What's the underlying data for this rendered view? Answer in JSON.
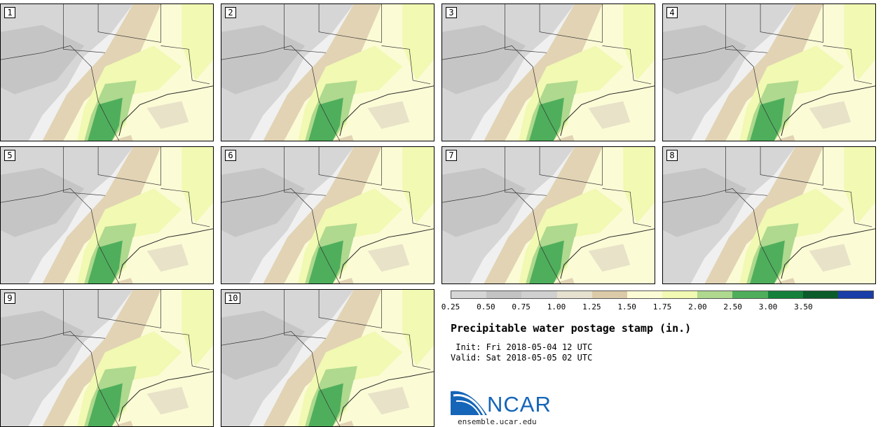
{
  "panels": [
    {
      "label": "1"
    },
    {
      "label": "2"
    },
    {
      "label": "3"
    },
    {
      "label": "4"
    },
    {
      "label": "5"
    },
    {
      "label": "6"
    },
    {
      "label": "7"
    },
    {
      "label": "8"
    },
    {
      "label": "9"
    },
    {
      "label": "10"
    }
  ],
  "legend": {
    "ticks": [
      "0.25",
      "0.50",
      "0.75",
      "1.00",
      "1.25",
      "1.50",
      "1.75",
      "2.00",
      "2.50",
      "3.00",
      "3.50"
    ],
    "colors": [
      "#d6d6d6",
      "#c3c3c3",
      "#d0d0d0",
      "#e6e0cf",
      "#dccba8",
      "#fbfbd6",
      "#f1f9b2",
      "#aed98e",
      "#4fae5c",
      "#14803a",
      "#0a5c2a",
      "#1a3ea8"
    ]
  },
  "title": "Precipitable water postage stamp (in.)",
  "init": " Init: Fri 2018-05-04 12 UTC",
  "valid": "Valid: Sat 2018-05-05 02 UTC",
  "logo": {
    "text": "NCAR",
    "color": "#1565b8"
  },
  "site": "ensemble.ucar.edu"
}
